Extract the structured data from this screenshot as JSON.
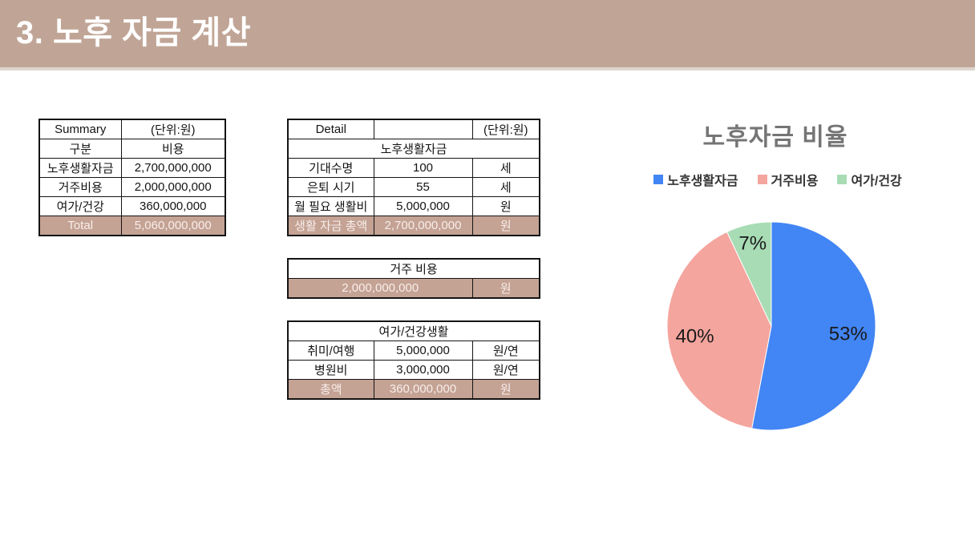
{
  "header": {
    "title": "3. 노후 자금 계산"
  },
  "theme": {
    "header_bg": "#c0a596",
    "highlight_bg": "#c4a294",
    "highlight_text": "#f8eeea",
    "chart_title_color": "#757575"
  },
  "summary_table": {
    "title": "Summary",
    "unit_note": "(단위:원)",
    "col_headers": [
      "구분",
      "비용"
    ],
    "rows": [
      {
        "label": "노후생활자금",
        "value": "2,700,000,000"
      },
      {
        "label": "거주비용",
        "value": "2,000,000,000"
      },
      {
        "label": "여가/건강",
        "value": "360,000,000"
      }
    ],
    "total": {
      "label": "Total",
      "value": "5,060,000,000"
    }
  },
  "detail_table": {
    "title": "Detail",
    "unit_note": "(단위:원)",
    "section_header": "노후생활자금",
    "rows": [
      {
        "label": "기대수명",
        "value": "100",
        "unit": "세"
      },
      {
        "label": "은퇴 시기",
        "value": "55",
        "unit": "세"
      },
      {
        "label": "월 필요 생활비",
        "value": "5,000,000",
        "unit": "원"
      }
    ],
    "total": {
      "label": "생활 자금 총액",
      "value": "2,700,000,000",
      "unit": "원"
    }
  },
  "housing_table": {
    "section_header": "거주 비용",
    "total": {
      "value": "2,000,000,000",
      "unit": "원"
    }
  },
  "leisure_table": {
    "section_header": "여가/건강생활",
    "rows": [
      {
        "label": "취미/여행",
        "value": "5,000,000",
        "unit": "원/연"
      },
      {
        "label": "병원비",
        "value": "3,000,000",
        "unit": "원/연"
      }
    ],
    "total": {
      "label": "총액",
      "value": "360,000,000",
      "unit": "원"
    }
  },
  "chart_data": {
    "type": "pie",
    "title": "노후자금 비율",
    "categories": [
      "노후생활자금",
      "거주비용",
      "여가/건강"
    ],
    "values": [
      53,
      40,
      7
    ],
    "data_labels": [
      "53%",
      "40%",
      "7%"
    ],
    "colors": [
      "#4285f4",
      "#f4a59e",
      "#a7dcb5"
    ],
    "legend_position": "top",
    "start_angle": 0,
    "direction": "clockwise"
  }
}
